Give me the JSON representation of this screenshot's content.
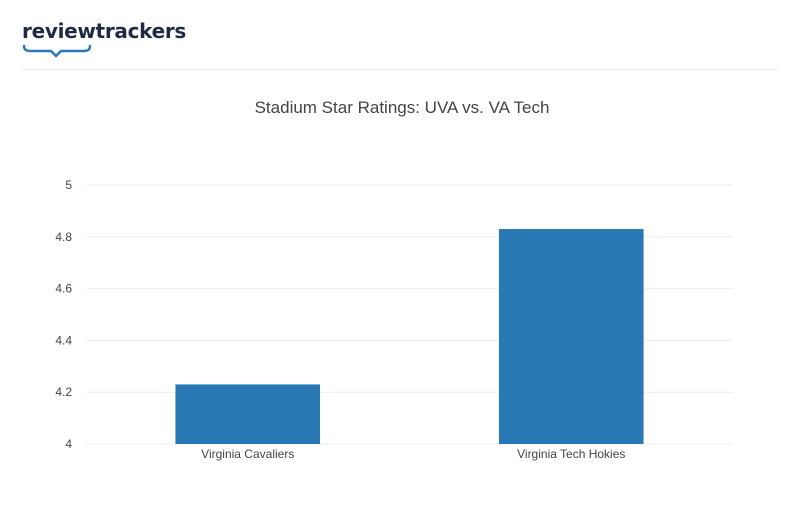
{
  "brand": {
    "name": "reviewtrackers",
    "accent_color": "#2a78b5",
    "text_color": "#1f2a44"
  },
  "chart_data": {
    "type": "bar",
    "title": "Stadium Star Ratings: UVA vs. VA Tech",
    "categories": [
      "Virginia Cavaliers",
      "Virginia Tech Hokies"
    ],
    "values": [
      4.23,
      4.83
    ],
    "xlabel": "",
    "ylabel": "",
    "ylim": [
      4,
      5
    ],
    "yticks": [
      4,
      4.2,
      4.4,
      4.6,
      4.8,
      5
    ],
    "ytick_labels": [
      "4",
      "4.2",
      "4.4",
      "4.6",
      "4.8",
      "5"
    ],
    "grid": true,
    "legend": "none",
    "bar_color": "#2878b4"
  }
}
